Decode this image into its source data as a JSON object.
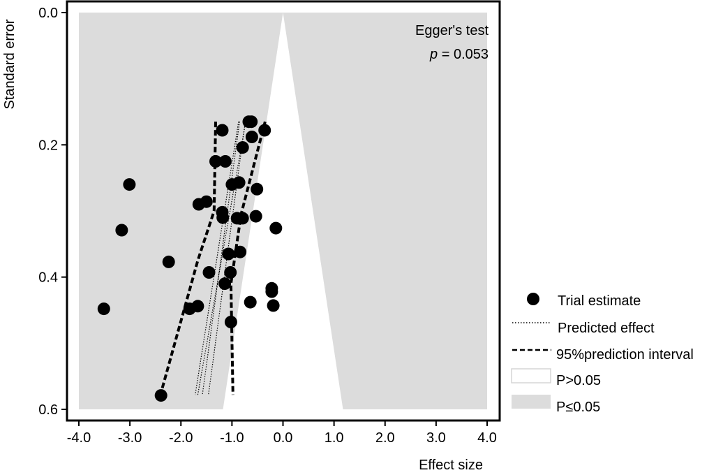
{
  "chart_data": {
    "type": "scatter",
    "title": "",
    "xlabel": "Effect size",
    "ylabel": "Standard error",
    "xlim": [
      -4.0,
      4.0
    ],
    "ylim": [
      0.0,
      0.6
    ],
    "y_inverted": true,
    "x_ticks": [
      "-4.0",
      "-3.0",
      "-2.0",
      "-1.0",
      "0.0",
      "1.0",
      "2.0",
      "3.0",
      "4.0"
    ],
    "y_ticks": [
      "0.0",
      "0.2",
      "0.4",
      "0.6"
    ],
    "grid": false,
    "colors": {
      "significant_region": "#dcdcdc",
      "nonsignificant_region": "#ffffff",
      "points": "#000000"
    },
    "annotation": {
      "line1": "Egger's test",
      "p_label": "p",
      "p_rest": " = 0.053"
    },
    "legend": {
      "placement": "right",
      "entries": [
        {
          "key": "points",
          "label": "Trial estimate"
        },
        {
          "key": "predicted",
          "label": "Predicted effect"
        },
        {
          "key": "interval",
          "label": "95%prediction interval"
        },
        {
          "key": "nonsig",
          "label": "P>0.05"
        },
        {
          "key": "sig",
          "label": "P≤0.05"
        }
      ]
    },
    "significance_region_se": [
      0.0,
      0.6
    ],
    "points": [
      {
        "x": -0.67,
        "y": 0.165
      },
      {
        "x": -0.62,
        "y": 0.165
      },
      {
        "x": -0.36,
        "y": 0.178
      },
      {
        "x": -1.19,
        "y": 0.178
      },
      {
        "x": -0.61,
        "y": 0.188
      },
      {
        "x": -0.79,
        "y": 0.204
      },
      {
        "x": -1.32,
        "y": 0.225
      },
      {
        "x": -1.13,
        "y": 0.225
      },
      {
        "x": -3.01,
        "y": 0.26
      },
      {
        "x": -1.0,
        "y": 0.26
      },
      {
        "x": -0.86,
        "y": 0.257
      },
      {
        "x": -0.51,
        "y": 0.267
      },
      {
        "x": -1.5,
        "y": 0.286
      },
      {
        "x": -1.65,
        "y": 0.29
      },
      {
        "x": -1.19,
        "y": 0.302
      },
      {
        "x": -0.53,
        "y": 0.308
      },
      {
        "x": -1.18,
        "y": 0.31
      },
      {
        "x": -0.9,
        "y": 0.311
      },
      {
        "x": -0.79,
        "y": 0.311
      },
      {
        "x": -3.16,
        "y": 0.329
      },
      {
        "x": -0.14,
        "y": 0.326
      },
      {
        "x": -1.07,
        "y": 0.365
      },
      {
        "x": -0.84,
        "y": 0.362
      },
      {
        "x": -2.24,
        "y": 0.377
      },
      {
        "x": -1.45,
        "y": 0.393
      },
      {
        "x": -1.03,
        "y": 0.393
      },
      {
        "x": -1.14,
        "y": 0.41
      },
      {
        "x": -0.22,
        "y": 0.417
      },
      {
        "x": -0.22,
        "y": 0.422
      },
      {
        "x": -3.51,
        "y": 0.448
      },
      {
        "x": -0.64,
        "y": 0.438
      },
      {
        "x": -0.19,
        "y": 0.443
      },
      {
        "x": -1.67,
        "y": 0.444
      },
      {
        "x": -1.83,
        "y": 0.448
      },
      {
        "x": -1.02,
        "y": 0.468
      },
      {
        "x": -2.39,
        "y": 0.579
      }
    ],
    "predicted_effect_lines": [
      [
        {
          "x": -0.87,
          "y": 0.165
        },
        {
          "x": -1.72,
          "y": 0.578
        }
      ],
      [
        {
          "x": -0.73,
          "y": 0.165
        },
        {
          "x": -1.67,
          "y": 0.578
        }
      ],
      [
        {
          "x": -0.85,
          "y": 0.165
        },
        {
          "x": -1.58,
          "y": 0.578
        }
      ],
      [
        {
          "x": -0.74,
          "y": 0.165
        },
        {
          "x": -1.46,
          "y": 0.578
        }
      ]
    ],
    "prediction_interval_lines": [
      [
        {
          "x": -1.32,
          "y": 0.165
        },
        {
          "x": -1.35,
          "y": 0.3
        },
        {
          "x": -1.67,
          "y": 0.375
        },
        {
          "x": -2.39,
          "y": 0.575
        }
      ],
      [
        {
          "x": -0.35,
          "y": 0.165
        },
        {
          "x": -0.82,
          "y": 0.305
        },
        {
          "x": -1.02,
          "y": 0.41
        },
        {
          "x": -0.98,
          "y": 0.578
        }
      ]
    ]
  }
}
